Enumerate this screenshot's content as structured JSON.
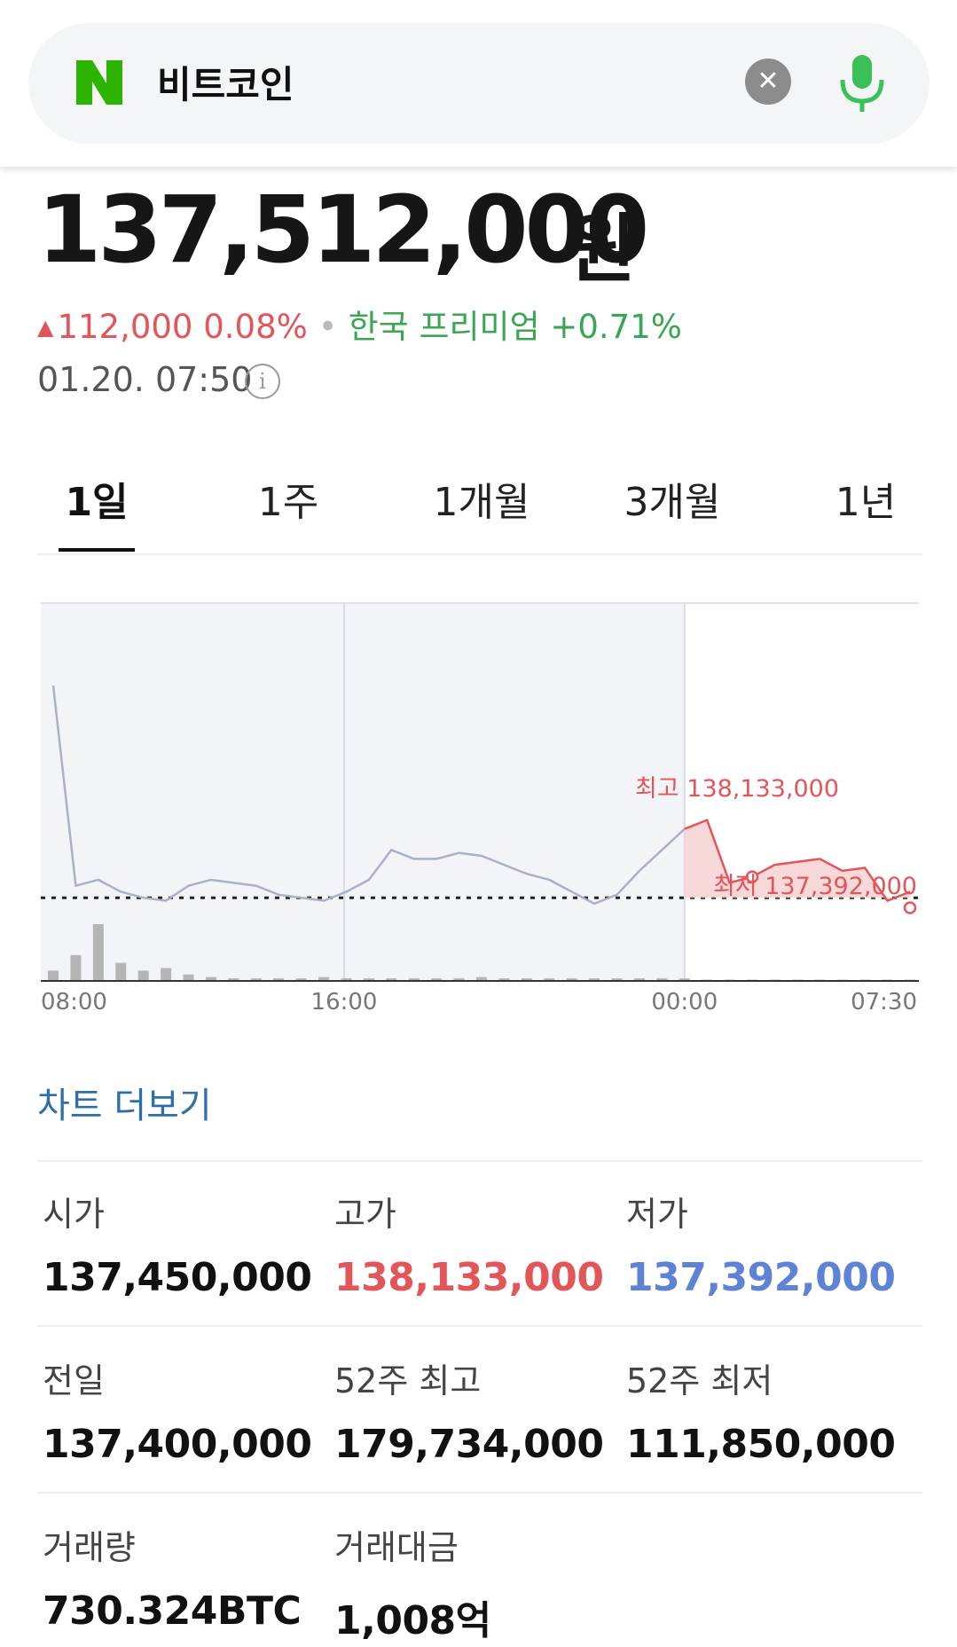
{
  "search": {
    "query": "비트코인"
  },
  "quote": {
    "price": "137,512,000",
    "unit": "원",
    "change": "112,000 0.08%",
    "premium": "한국 프리미엄 +0.71%",
    "timestamp": "01.20. 07:50"
  },
  "tabs": [
    "1일",
    "1주",
    "1개월",
    "3개월",
    "1년"
  ],
  "chart_data": {
    "type": "line",
    "x_tick_labels": [
      "08:00",
      "16:00",
      "00:00",
      "07:30"
    ],
    "annotations": {
      "high": "최고 138,133,000",
      "low": "최저 137,392,000"
    },
    "high": 138133000,
    "low": 137392000,
    "reference": 137400000,
    "series": [
      {
        "values": [
          138540000,
          137870000,
          137890000,
          137850000,
          137830000,
          137820000,
          137870000,
          137890000,
          137880000,
          137870000,
          137840000,
          137830000,
          137820000,
          137850000,
          137890000,
          137990000,
          137960000,
          137960000,
          137980000,
          137970000,
          137940000,
          137910000,
          137890000,
          137850000,
          137810000,
          137840000,
          137920000,
          137990000,
          138060000,
          138090000,
          137880000,
          137900000,
          137940000,
          137950000,
          137960000,
          137920000,
          137930000,
          137820000,
          137850000
        ]
      }
    ],
    "volume": [
      8,
      20,
      44,
      14,
      8,
      10,
      5,
      3,
      2,
      2,
      2,
      2,
      3,
      2,
      2,
      2,
      2,
      2,
      2,
      3,
      2,
      2,
      2,
      2,
      2,
      2,
      2,
      2,
      2,
      1,
      1,
      1,
      1,
      1,
      1,
      1,
      1,
      1,
      1
    ]
  },
  "more_link": "차트 더보기",
  "stats": [
    {
      "label": "시가",
      "value": "137,450,000",
      "tone": ""
    },
    {
      "label": "고가",
      "value": "138,133,000",
      "tone": "red"
    },
    {
      "label": "저가",
      "value": "137,392,000",
      "tone": "blue"
    },
    {
      "label": "전일",
      "value": "137,400,000",
      "tone": ""
    },
    {
      "label": "52주 최고",
      "value": "179,734,000",
      "tone": ""
    },
    {
      "label": "52주 최저",
      "value": "111,850,000",
      "tone": ""
    },
    {
      "label": "거래량",
      "value": "730.324BTC",
      "tone": ""
    },
    {
      "label": "거래대금",
      "value": "1,008억",
      "tone": ""
    }
  ],
  "colors": {
    "up": "#e2565a",
    "down": "#5e82d6",
    "premium": "#3aa553",
    "link": "#2f6fa8",
    "naver": "#03c75a"
  },
  "icons": [
    "naver-logo-icon",
    "clear-icon",
    "mic-icon",
    "info-icon"
  ]
}
